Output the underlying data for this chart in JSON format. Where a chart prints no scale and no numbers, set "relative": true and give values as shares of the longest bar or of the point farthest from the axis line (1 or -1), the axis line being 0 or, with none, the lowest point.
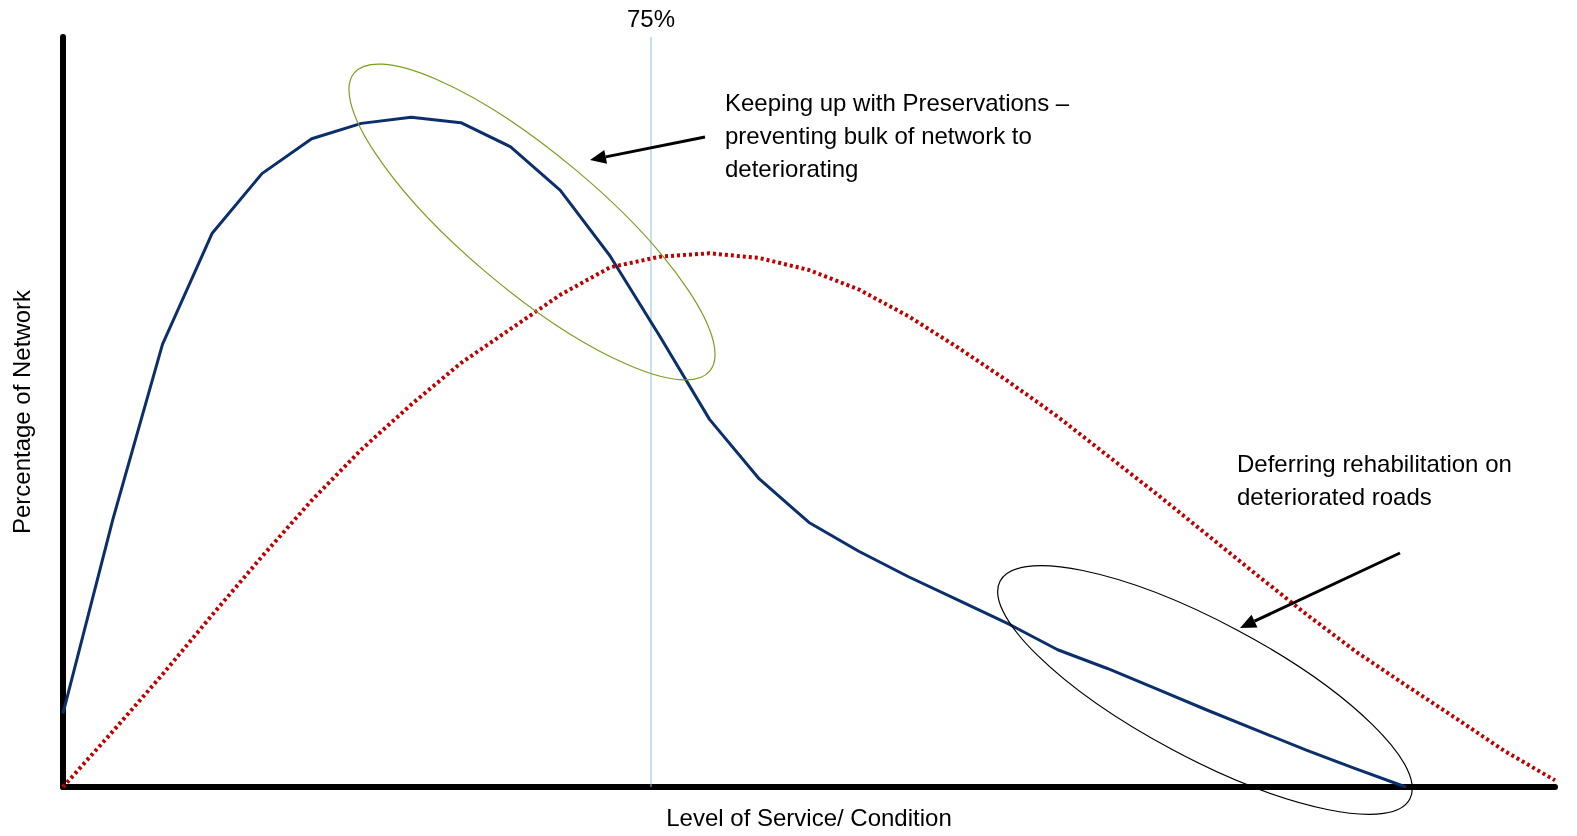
{
  "chart_data": {
    "type": "line",
    "relative": true,
    "xlabel": "Level of Service/ Condition",
    "ylabel": "Percentage of Network",
    "marker": "none",
    "categories": [
      null,
      null,
      null,
      null,
      null,
      null,
      null,
      null,
      null,
      null,
      null,
      null,
      null,
      null,
      null,
      null,
      null,
      null,
      null,
      null,
      null,
      null,
      null,
      null,
      null,
      null,
      null,
      null,
      null,
      null,
      null
    ],
    "series": [
      {
        "color": "#0b2f6b",
        "line_style": "solid",
        "values": [
          0.11,
          0.399,
          0.661,
          0.827,
          0.916,
          0.968,
          0.991,
          1,
          0.992,
          0.956,
          0.891,
          0.793,
          0.673,
          0.549,
          0.46,
          0.395,
          0.352,
          0.314,
          0.279,
          0.244,
          0.205,
          0.177,
          0.146,
          0.115,
          0.085,
          0.055,
          0.027,
          0,
          null,
          null,
          null
        ]
      },
      {
        "color": "#c00000",
        "line_style": "dotted",
        "values": [
          0,
          0.083,
          0.168,
          0.257,
          0.344,
          0.428,
          0.504,
          0.571,
          0.633,
          0.684,
          0.735,
          0.776,
          0.792,
          0.797,
          0.79,
          0.772,
          0.743,
          0.703,
          0.656,
          0.606,
          0.553,
          0.495,
          0.437,
          0.377,
          0.317,
          0.258,
          0.202,
          0.152,
          0.103,
          0.053,
          0.01
        ]
      }
    ],
    "annotations": [
      "Keeping up with Preservations – preventing bulk of network to deteriorating",
      "Deferring rehabilitation on deteriorated roads",
      "75%"
    ]
  }
}
